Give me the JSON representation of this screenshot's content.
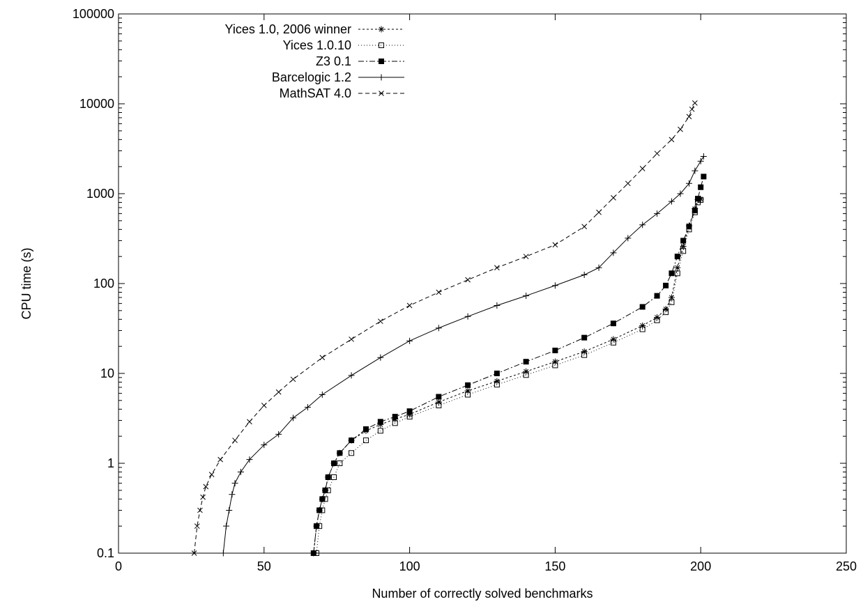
{
  "chart_data": {
    "type": "line",
    "title": "",
    "xlabel": "Number of correctly solved benchmarks",
    "ylabel": "CPU time (s)",
    "xlim": [
      0,
      250
    ],
    "ylim": [
      0.1,
      100000
    ],
    "yscale": "log",
    "grid": false,
    "legend_position": "top-left",
    "x_ticks": [
      "0",
      "50",
      "100",
      "150",
      "200",
      "250"
    ],
    "y_ticks": [
      "0.1",
      "1",
      "10",
      "100",
      "1000",
      "10000",
      "100000"
    ],
    "x_tick_values": [
      0,
      50,
      100,
      150,
      200,
      250
    ],
    "y_tick_values": [
      0.1,
      1,
      10,
      100,
      1000,
      10000,
      100000
    ],
    "series": [
      {
        "name": "Yices 1.0, 2006 winner",
        "marker": "star",
        "dash": "3,3",
        "x": [
          67,
          68,
          69,
          70,
          71,
          72,
          74,
          76,
          80,
          85,
          90,
          95,
          100,
          110,
          120,
          130,
          140,
          150,
          160,
          170,
          180,
          185,
          188,
          190,
          192,
          194,
          196,
          198,
          199,
          200
        ],
        "y": [
          0.1,
          0.2,
          0.3,
          0.4,
          0.5,
          0.7,
          1.0,
          1.3,
          1.8,
          2.3,
          2.7,
          3.1,
          3.5,
          4.8,
          6.4,
          8.2,
          10.5,
          13.5,
          17.5,
          24,
          34,
          42,
          52,
          70,
          150,
          260,
          440,
          680,
          860,
          870
        ]
      },
      {
        "name": "Yices 1.0.10",
        "marker": "open-square",
        "dash": "1,3",
        "x": [
          68,
          69,
          70,
          71,
          72,
          74,
          76,
          80,
          85,
          90,
          95,
          100,
          110,
          120,
          130,
          140,
          150,
          160,
          170,
          180,
          185,
          188,
          190,
          192,
          194,
          196,
          198,
          199,
          200
        ],
        "y": [
          0.1,
          0.2,
          0.3,
          0.4,
          0.5,
          0.7,
          1.0,
          1.3,
          1.8,
          2.3,
          2.8,
          3.3,
          4.4,
          5.8,
          7.5,
          9.6,
          12.3,
          16,
          22,
          31,
          39,
          48,
          62,
          130,
          230,
          400,
          620,
          800,
          850
        ]
      },
      {
        "name": "Z3 0.1",
        "marker": "filled-square",
        "dash": "8,3,2,3",
        "x": [
          67,
          68,
          69,
          70,
          71,
          72,
          74,
          76,
          80,
          85,
          90,
          95,
          100,
          110,
          120,
          130,
          140,
          150,
          160,
          170,
          180,
          185,
          188,
          190,
          192,
          194,
          196,
          198,
          199,
          200,
          201
        ],
        "y": [
          0.1,
          0.2,
          0.3,
          0.4,
          0.5,
          0.7,
          1.0,
          1.3,
          1.8,
          2.4,
          2.9,
          3.3,
          3.8,
          5.5,
          7.4,
          10,
          13.5,
          18,
          25,
          36,
          55,
          73,
          95,
          130,
          200,
          300,
          430,
          650,
          880,
          1180,
          1550
        ]
      },
      {
        "name": "Barcelogic 1.2",
        "marker": "plus",
        "dash": "",
        "x": [
          36,
          37,
          38,
          39,
          40,
          42,
          45,
          50,
          55,
          60,
          65,
          70,
          80,
          90,
          100,
          110,
          120,
          130,
          140,
          150,
          160,
          165,
          170,
          175,
          180,
          185,
          190,
          193,
          196,
          198,
          200,
          201
        ],
        "y": [
          0.1,
          0.2,
          0.3,
          0.45,
          0.6,
          0.8,
          1.1,
          1.6,
          2.1,
          3.2,
          4.2,
          5.8,
          9.5,
          15,
          23,
          32,
          43,
          57,
          73,
          95,
          125,
          150,
          220,
          320,
          450,
          600,
          820,
          1000,
          1300,
          1800,
          2300,
          2600
        ]
      },
      {
        "name": "MathSAT 4.0",
        "marker": "cross",
        "dash": "6,4",
        "x": [
          26,
          27,
          28,
          29,
          30,
          32,
          35,
          40,
          45,
          50,
          55,
          60,
          70,
          80,
          90,
          100,
          110,
          120,
          130,
          140,
          150,
          160,
          165,
          170,
          175,
          180,
          185,
          190,
          193,
          196,
          197,
          198
        ],
        "y": [
          0.1,
          0.2,
          0.3,
          0.42,
          0.55,
          0.75,
          1.1,
          1.8,
          2.9,
          4.4,
          6.2,
          8.6,
          15,
          24,
          38,
          57,
          80,
          110,
          150,
          200,
          270,
          430,
          620,
          900,
          1300,
          1900,
          2800,
          4000,
          5200,
          7200,
          8700,
          10200
        ]
      }
    ]
  }
}
